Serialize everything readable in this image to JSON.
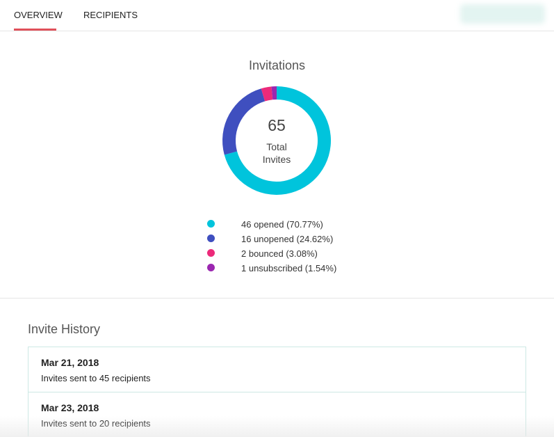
{
  "tabs": [
    "OVERVIEW",
    "RECIPIENTS"
  ],
  "chart_data": {
    "type": "pie",
    "donut": true,
    "title": "Invitations",
    "values": [
      46,
      16,
      2,
      1
    ],
    "value_labels": [
      "46 opened (70.77%)",
      "16 unopened (24.62%)",
      "2 bounced (3.08%)",
      "1 unsubscribed (1.54%)"
    ],
    "colors": [
      "#00c4dc",
      "#3f4fbf",
      "#ec2a7a",
      "#9b27b0"
    ],
    "center_value": 65,
    "center_label": "Total Invites"
  },
  "history": {
    "title": "Invite History",
    "items": [
      {
        "date": "Mar 21, 2018",
        "text": "Invites sent to 45 recipients"
      },
      {
        "date": "Mar 23, 2018",
        "text": "Invites sent to 20 recipients"
      }
    ]
  }
}
